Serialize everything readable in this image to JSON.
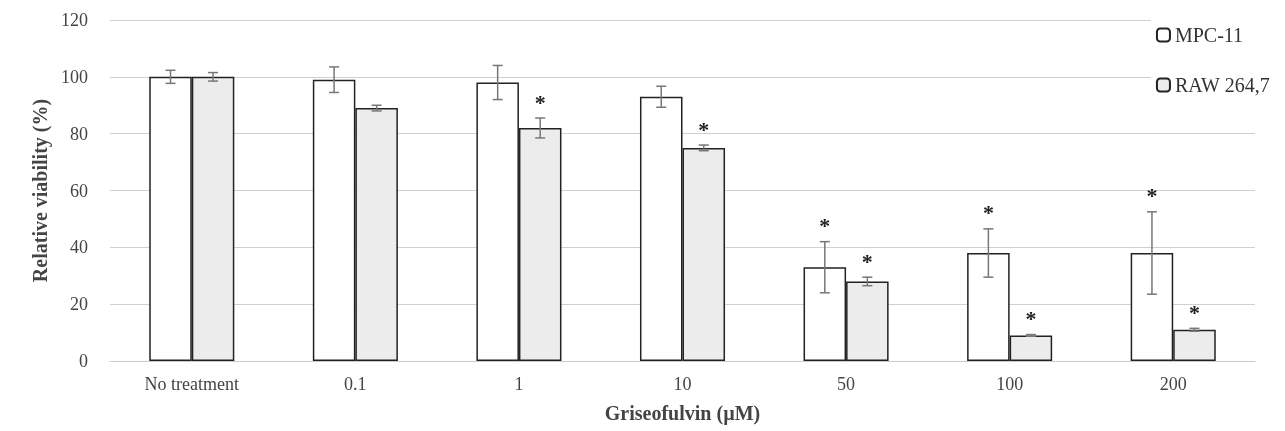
{
  "chart_data": {
    "type": "bar",
    "xlabel": "Griseofulvin (µM)",
    "ylabel": "Relative viability (%)",
    "categories": [
      "No treatment",
      "0.1",
      "1",
      "10",
      "50",
      "100",
      "200"
    ],
    "series": [
      {
        "name": "MPC-11",
        "color": "#ffffff",
        "values": [
          100,
          99,
          98,
          93,
          33,
          38,
          38
        ],
        "errors": [
          2.3,
          4.5,
          6,
          3.7,
          9,
          8.5,
          14.5
        ]
      },
      {
        "name": "RAW 264,7",
        "color": "#ececec",
        "values": [
          100,
          89,
          82,
          75,
          28,
          9,
          11
        ],
        "errors": [
          1.5,
          1,
          3.5,
          1,
          1.5,
          0.3,
          0.5
        ]
      }
    ],
    "ylim": [
      0,
      120
    ],
    "yticks": [
      0,
      20,
      40,
      60,
      80,
      100,
      120
    ],
    "grid": "y",
    "legend": "top right",
    "annotations": [
      {
        "text": "*",
        "x": "1",
        "y": 82
      },
      {
        "text": "*",
        "x": "10",
        "y": 75
      },
      {
        "text": "*",
        "x": "50",
        "y": 33
      },
      {
        "text": "*",
        "x": "50",
        "y": 28
      },
      {
        "text": "*",
        "x": "100",
        "y": 38
      },
      {
        "text": "*",
        "x": "100",
        "y": 9
      },
      {
        "text": "*",
        "x": "200",
        "y": 38
      },
      {
        "text": "*",
        "x": "200",
        "y": 11
      }
    ]
  }
}
